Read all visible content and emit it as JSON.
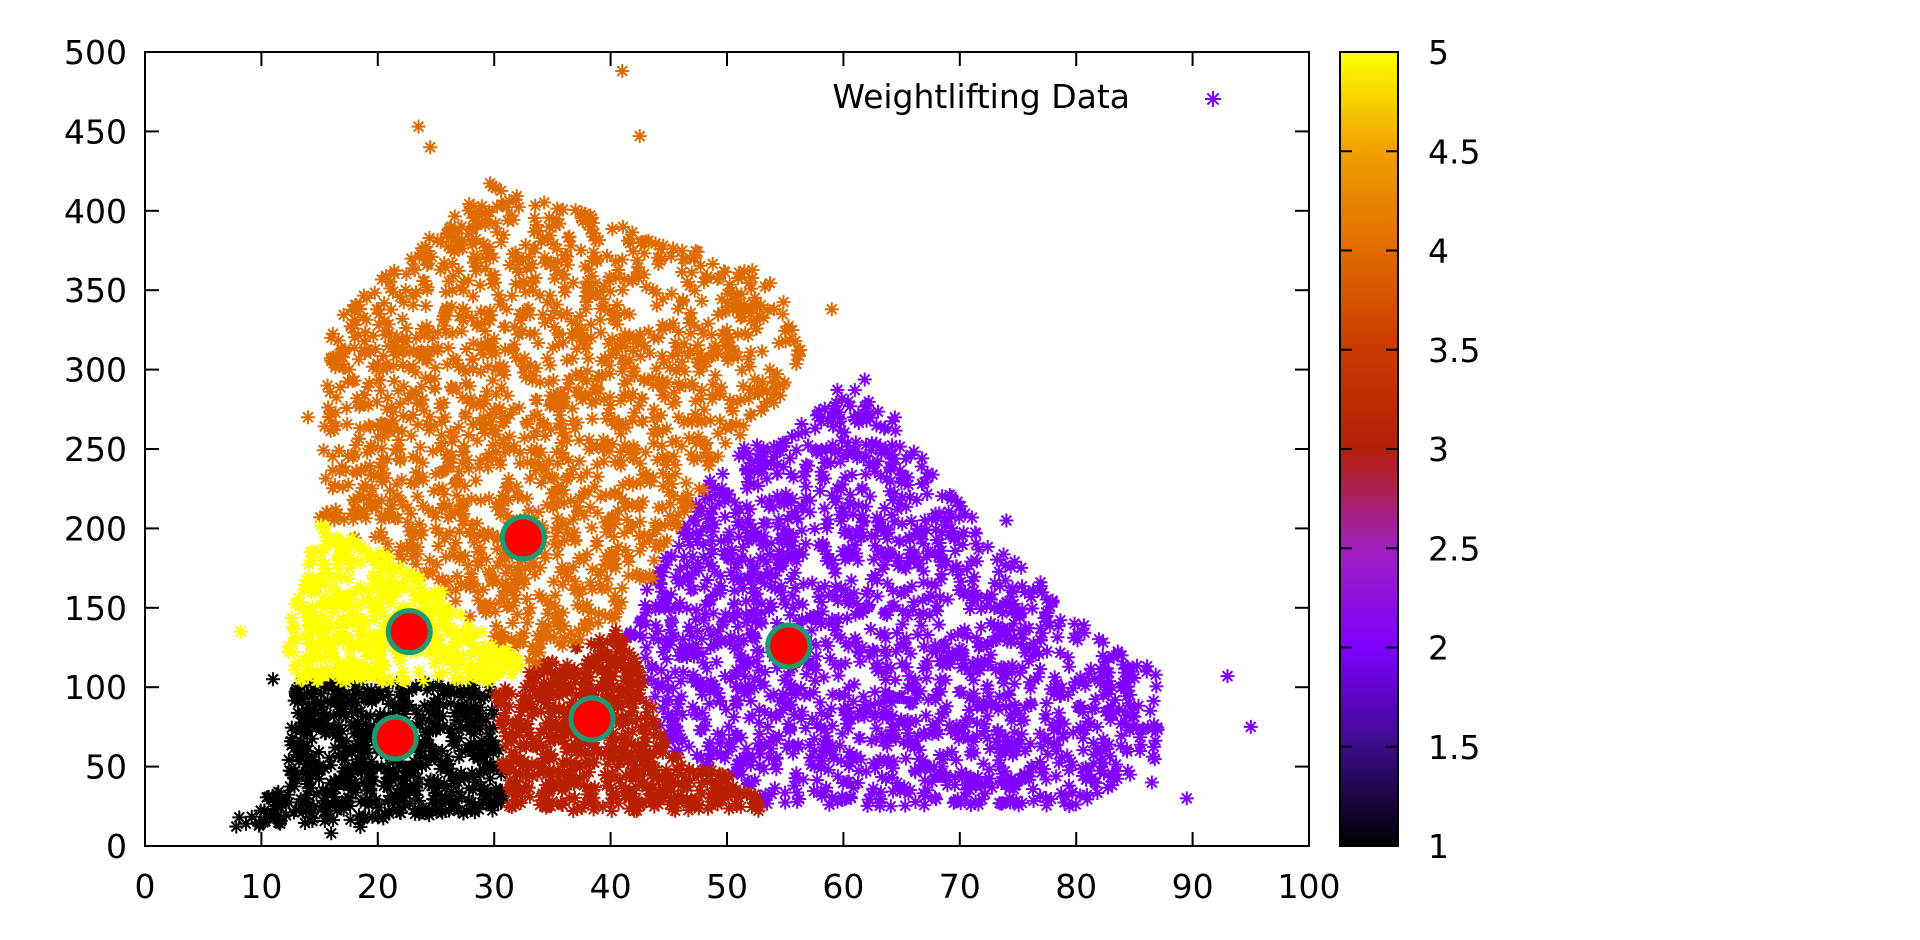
{
  "chart_data": {
    "type": "scatter",
    "title": "",
    "xlabel": "",
    "ylabel": "",
    "xlim": [
      0,
      100
    ],
    "ylim": [
      0,
      500
    ],
    "x_ticks": [
      "0",
      "10",
      "20",
      "30",
      "40",
      "50",
      "60",
      "70",
      "80",
      "90",
      "100"
    ],
    "y_ticks": [
      "0",
      "50",
      "100",
      "150",
      "200",
      "250",
      "300",
      "350",
      "400",
      "450",
      "500"
    ],
    "grid": false,
    "legend": {
      "placement": "top-right",
      "label": "Weightlifting Data"
    },
    "colorbar": {
      "range": [
        1,
        5
      ],
      "tick_labels": [
        "1",
        "1.5",
        "2",
        "2.5",
        "3",
        "3.5",
        "4",
        "4.5",
        "5"
      ],
      "palette": [
        "#000000",
        "#3b0c88",
        "#7f00ff",
        "#a020c0",
        "#b3200a",
        "#c83a00",
        "#e06a00",
        "#f0a000",
        "#ffff00"
      ]
    },
    "clusters": [
      {
        "id": 1,
        "color": "#000000",
        "centroid": {
          "x": 21.5,
          "y": 68
        },
        "x_range": [
          7,
          31
        ],
        "y_range": [
          5,
          103
        ]
      },
      {
        "id": 2,
        "color": "#8000ff",
        "centroid": {
          "x": 55.3,
          "y": 126
        },
        "x_range": [
          41,
          90
        ],
        "y_range": [
          25,
          330
        ]
      },
      {
        "id": 3,
        "color": "#b82000",
        "centroid": {
          "x": 38.4,
          "y": 80
        },
        "x_range": [
          30,
          53
        ],
        "y_range": [
          18,
          140
        ]
      },
      {
        "id": 4,
        "color": "#df6b00",
        "centroid": {
          "x": 32.5,
          "y": 194
        },
        "x_range": [
          14,
          60
        ],
        "y_range": [
          110,
          490
        ]
      },
      {
        "id": 5,
        "color": "#ffff00",
        "centroid": {
          "x": 22.7,
          "y": 135
        },
        "x_range": [
          12,
          33
        ],
        "y_range": [
          103,
          210
        ]
      }
    ],
    "outliers": [
      {
        "x": 8.2,
        "y": 135,
        "cluster": 5
      },
      {
        "x": 16.0,
        "y": 8,
        "cluster": 1
      },
      {
        "x": 18.5,
        "y": 12,
        "cluster": 1
      },
      {
        "x": 11.0,
        "y": 105,
        "cluster": 1
      },
      {
        "x": 41.0,
        "y": 488,
        "cluster": 4
      },
      {
        "x": 23.5,
        "y": 453,
        "cluster": 4
      },
      {
        "x": 24.5,
        "y": 440,
        "cluster": 4
      },
      {
        "x": 42.5,
        "y": 447,
        "cluster": 4
      },
      {
        "x": 14.0,
        "y": 270,
        "cluster": 4
      },
      {
        "x": 16.0,
        "y": 320,
        "cluster": 4
      },
      {
        "x": 59.0,
        "y": 338,
        "cluster": 4
      },
      {
        "x": 93.0,
        "y": 107,
        "cluster": 2
      },
      {
        "x": 95.0,
        "y": 75,
        "cluster": 2
      },
      {
        "x": 89.5,
        "y": 30,
        "cluster": 2
      },
      {
        "x": 86.5,
        "y": 40,
        "cluster": 2
      },
      {
        "x": 74.0,
        "y": 205,
        "cluster": 2
      }
    ],
    "centroid_style": {
      "fill": "#ff0000",
      "stroke": "#1e9a73"
    }
  }
}
